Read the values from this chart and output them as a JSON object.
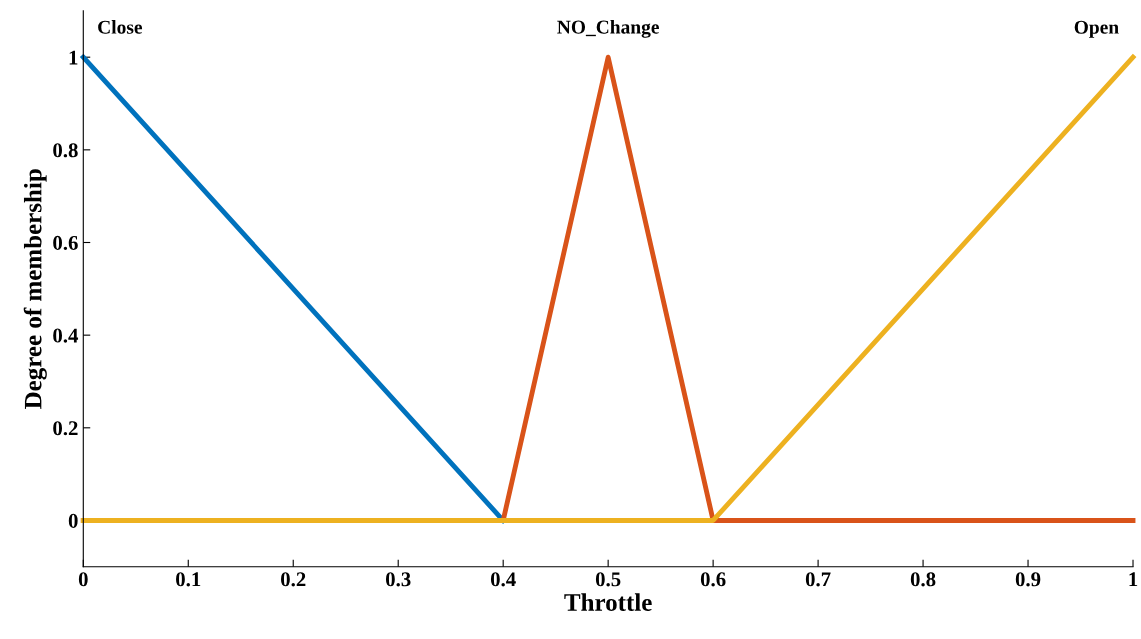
{
  "chart_data": {
    "type": "line",
    "xlabel": "Throttle",
    "ylabel": "Degree of membership",
    "series": [
      {
        "name": "Close",
        "color": "#0072bd",
        "x": [
          0,
          0.4
        ],
        "values": [
          1,
          0
        ]
      },
      {
        "name": "NO_Change",
        "color": "#d95319",
        "x": [
          0,
          0.4,
          0.5,
          0.6,
          1
        ],
        "values": [
          0,
          0,
          1,
          0,
          0
        ]
      },
      {
        "name": "Open",
        "color": "#edb120",
        "x": [
          0,
          0.6,
          1
        ],
        "values": [
          0,
          0,
          1
        ]
      }
    ],
    "xlim": [
      0,
      1
    ],
    "xticks": [
      0,
      0.1,
      0.2,
      0.3,
      0.4,
      0.5,
      0.6,
      0.7,
      0.8,
      0.9,
      1
    ],
    "ylim": [
      -0.1,
      1.1
    ],
    "yticks": [
      0,
      0.2,
      0.4,
      0.6,
      0.8,
      1
    ],
    "grid": false,
    "legend": false,
    "marker": "none",
    "line_style": "solid"
  }
}
